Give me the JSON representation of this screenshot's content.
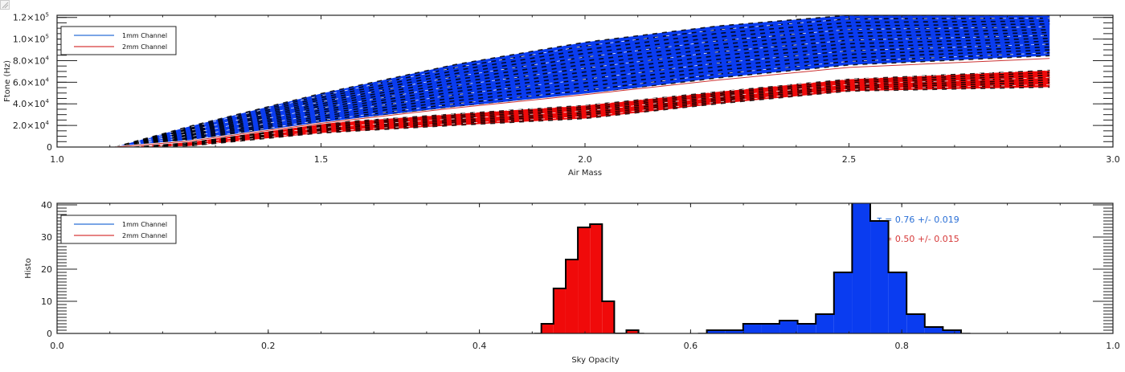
{
  "chart_data": [
    {
      "id": "ftone_vs_airmass",
      "type": "line",
      "title": "",
      "xlabel": "Air Mass",
      "ylabel": "Ftone (Hz)",
      "xlim": [
        1.0,
        3.0
      ],
      "ylim": [
        0,
        122000
      ],
      "x_ticks": [
        1.0,
        1.5,
        2.0,
        2.5,
        3.0
      ],
      "x_tick_labels": [
        "1.0",
        "1.5",
        "2.0",
        "2.5",
        "3.0"
      ],
      "x_minor_step": 0.1,
      "y_ticks": [
        0,
        20000,
        40000,
        60000,
        80000,
        100000,
        120000
      ],
      "y_tick_labels": [
        {
          "mant": "0",
          "exp": ""
        },
        {
          "mant": "2.0×10",
          "exp": "4"
        },
        {
          "mant": "4.0×10",
          "exp": "4"
        },
        {
          "mant": "6.0×10",
          "exp": "4"
        },
        {
          "mant": "8.0×10",
          "exp": "4"
        },
        {
          "mant": "1.0×10",
          "exp": "5"
        },
        {
          "mant": "1.2×10",
          "exp": "5"
        }
      ],
      "y_minor_step": 5000,
      "legend": {
        "position": "top-left",
        "entries": [
          {
            "label": "1mm Channel",
            "color": "#2a6fd6"
          },
          {
            "label": "2mm Channel",
            "color": "#d63a3a"
          }
        ]
      },
      "note": "Many individual curves per channel; shown as bands (envelope of all curves) with black dashed overplot.",
      "series": [
        {
          "name": "1mm Channel",
          "color": "#0a3cf0",
          "x": [
            1.11,
            1.25,
            1.5,
            1.75,
            2.0,
            2.25,
            2.5,
            2.88
          ],
          "upper": [
            0,
            19000,
            49500,
            76000,
            97000,
            112000,
            122000,
            122000
          ],
          "lower": [
            0,
            5800,
            22800,
            37000,
            49000,
            64000,
            76000,
            84600
          ]
        },
        {
          "name": "2mm Channel",
          "color": "#f00a0a",
          "x": [
            1.11,
            1.25,
            1.5,
            1.75,
            2.0,
            2.25,
            2.5,
            2.88
          ],
          "upper": [
            0,
            5000,
            21800,
            30500,
            38500,
            51000,
            62800,
            71000
          ],
          "lower": [
            0,
            1000,
            13000,
            20000,
            26400,
            40000,
            51800,
            55500
          ],
          "outlier_line": [
            0,
            5400,
            22000,
            36000,
            48500,
            62000,
            73700,
            82000
          ]
        }
      ]
    },
    {
      "id": "sky_opacity_histogram",
      "type": "bar",
      "title": "",
      "xlabel": "Sky Opacity",
      "ylabel": "Histo",
      "xlim": [
        0.0,
        1.0
      ],
      "ylim": [
        0,
        40.5
      ],
      "x_ticks": [
        0.0,
        0.2,
        0.4,
        0.6,
        0.8,
        1.0
      ],
      "x_tick_labels": [
        "0.0",
        "0.2",
        "0.4",
        "0.6",
        "0.8",
        "1.0"
      ],
      "x_minor_step": 0.05,
      "y_ticks": [
        0,
        10,
        20,
        30,
        40
      ],
      "y_tick_labels": [
        "0",
        "10",
        "20",
        "30",
        "40"
      ],
      "y_minor_step": 1,
      "legend": {
        "position": "top-left",
        "entries": [
          {
            "label": "1mm Channel",
            "color": "#2a6fd6"
          },
          {
            "label": "2mm Channel",
            "color": "#d63a3a"
          }
        ]
      },
      "series": [
        {
          "name": "1mm Channel",
          "color": "#0a3cf0",
          "bin_start": 0.6154,
          "bin_width": 0.0172,
          "counts": [
            1,
            1,
            3,
            3,
            4,
            3,
            6,
            19,
            41,
            35,
            19,
            6,
            2,
            1
          ],
          "baseline_extent": [
            0.607,
            0.865
          ]
        },
        {
          "name": "2mm Channel",
          "color": "#f00a0a",
          "bin_start": 0.4587,
          "bin_width": 0.0115,
          "counts": [
            3,
            14,
            23,
            33,
            34,
            10,
            0,
            1
          ],
          "baseline_extent": [
            0.452,
            0.556
          ]
        }
      ],
      "annotations": [
        {
          "text": "τ = 0.76 +/- 0.019",
          "color": "#2a6fd6"
        },
        {
          "text": "τ = 0.50 +/- 0.015",
          "color": "#d63a3a"
        }
      ]
    }
  ]
}
